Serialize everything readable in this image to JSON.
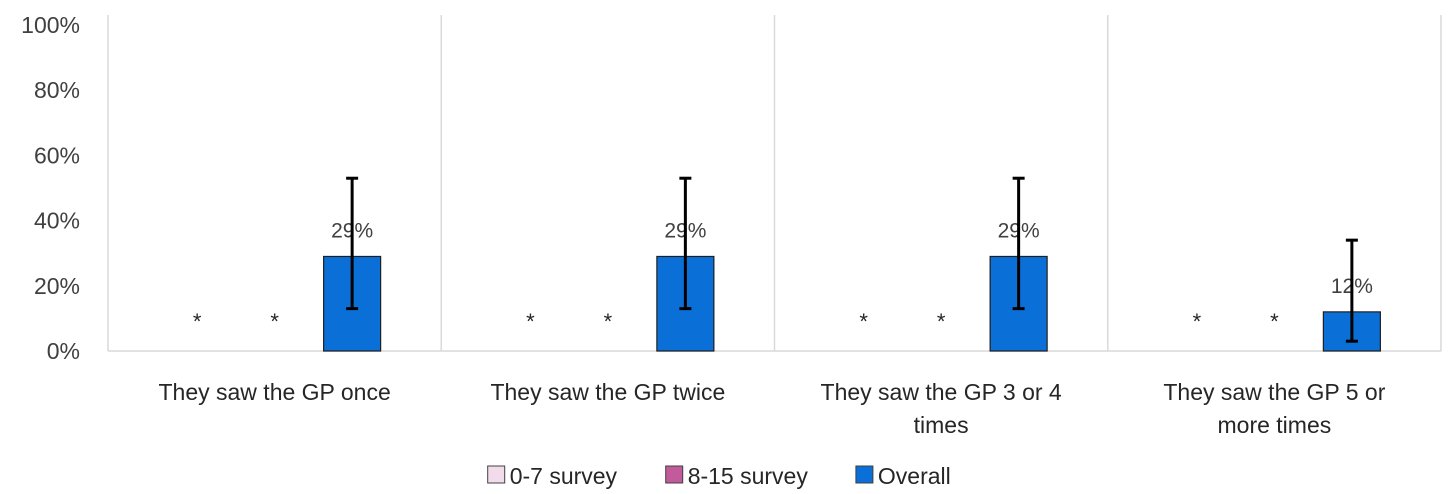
{
  "chart_data": {
    "type": "bar",
    "categories": [
      [
        "They saw the GP once"
      ],
      [
        "They saw the GP twice"
      ],
      [
        "They saw the GP 3 or 4",
        "times"
      ],
      [
        "They saw the GP 5 or",
        "more times"
      ]
    ],
    "series": [
      {
        "name": "0-7 survey",
        "color": "#f2dceb",
        "values": [
          null,
          null,
          null,
          null
        ],
        "labels": [
          "*",
          "*",
          "*",
          "*"
        ]
      },
      {
        "name": "8-15 survey",
        "color": "#c25a9c",
        "values": [
          null,
          null,
          null,
          null
        ],
        "labels": [
          "*",
          "*",
          "*",
          "*"
        ]
      },
      {
        "name": "Overall",
        "color": "#0b6fd8",
        "values": [
          29,
          29,
          29,
          12
        ],
        "labels": [
          "29%",
          "29%",
          "29%",
          "12%"
        ],
        "error_low": [
          13,
          13,
          13,
          3
        ],
        "error_high": [
          53,
          53,
          53,
          34
        ]
      }
    ],
    "yticks": [
      "0%",
      "20%",
      "40%",
      "60%",
      "80%",
      "100%"
    ],
    "ylim": [
      0,
      100
    ],
    "grid": false,
    "category_separators": true,
    "legend_position": "bottom"
  }
}
